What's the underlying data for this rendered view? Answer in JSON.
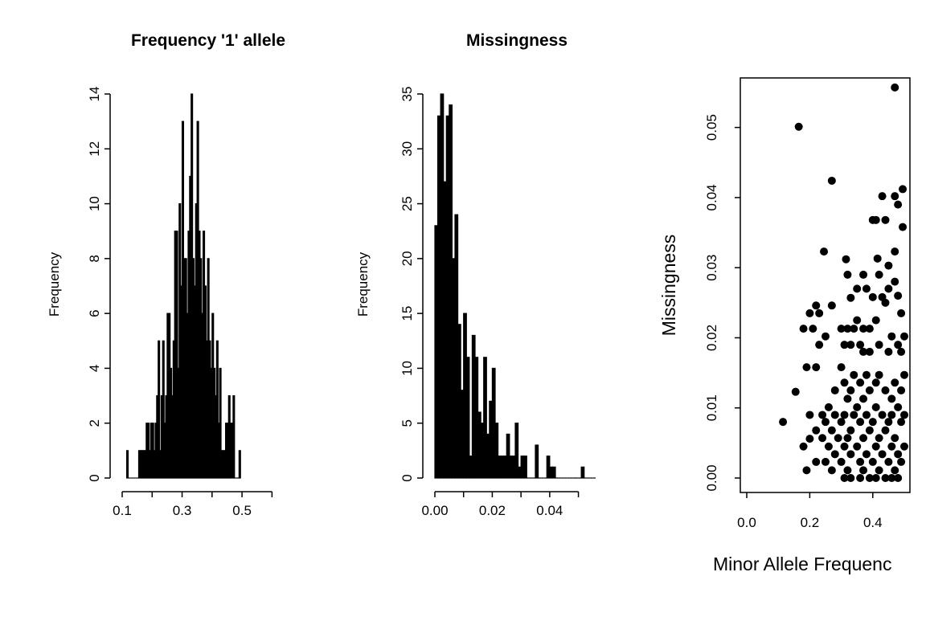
{
  "chart_data": [
    {
      "type": "bar",
      "title": "Frequency '1' allele",
      "xlabel": "",
      "ylabel": "Frequency",
      "xlim": [
        0.1,
        0.65
      ],
      "ylim": [
        0,
        14
      ],
      "xticks": [
        0.1,
        0.2,
        0.3,
        0.4,
        0.5,
        0.6
      ],
      "xtick_labels": [
        "0.1",
        "",
        "0.3",
        "",
        "0.5",
        ""
      ],
      "yticks": [
        0,
        2,
        4,
        6,
        8,
        10,
        12,
        14
      ],
      "ytick_labels": [
        "0",
        "2",
        "4",
        "6",
        "8",
        "10",
        "12",
        "14"
      ],
      "bin_width": 0.005,
      "bin_start": 0.115,
      "values": [
        1,
        0,
        0,
        0,
        0,
        0,
        0,
        0,
        1,
        1,
        1,
        1,
        1,
        2,
        2,
        1,
        2,
        2,
        1,
        2,
        3,
        5,
        1,
        3,
        5,
        2,
        3,
        6,
        6,
        4,
        3,
        5,
        9,
        9,
        4,
        10,
        7,
        13,
        8,
        8,
        6,
        9,
        11,
        14,
        8,
        7,
        10,
        13,
        9,
        8,
        6,
        9,
        7,
        5,
        8,
        5,
        4,
        6,
        4,
        3,
        5,
        2,
        4,
        1,
        1,
        1,
        2,
        2,
        3,
        2,
        2,
        3,
        0,
        0,
        0,
        1
      ]
    },
    {
      "type": "bar",
      "title": "Missingness",
      "xlabel": "",
      "ylabel": "Frequency",
      "xlim": [
        0,
        0.056
      ],
      "ylim": [
        0,
        35
      ],
      "xticks": [
        0.0,
        0.01,
        0.02,
        0.03,
        0.04,
        0.05
      ],
      "xtick_labels": [
        "0.00",
        "",
        "0.02",
        "",
        "0.04",
        ""
      ],
      "yticks": [
        0,
        5,
        10,
        15,
        20,
        25,
        30,
        35
      ],
      "ytick_labels": [
        "0",
        "5",
        "10",
        "15",
        "20",
        "25",
        "30",
        "35"
      ],
      "bin_width": 0.001,
      "bin_start": 0.0,
      "values": [
        23,
        33,
        35,
        27,
        33,
        34,
        20,
        24,
        14,
        8,
        15,
        11,
        2,
        13,
        11,
        6,
        5,
        11,
        4,
        7,
        10,
        5,
        2,
        2,
        2,
        4,
        2,
        2,
        5,
        1,
        2,
        2,
        0,
        0,
        0,
        3,
        0,
        0,
        0,
        2,
        1,
        1,
        0,
        0,
        0,
        0,
        0,
        0,
        0,
        0,
        0,
        1,
        0,
        0,
        0,
        0
      ]
    },
    {
      "type": "scatter",
      "title": "",
      "xlabel": "Minor Allele Frequenc",
      "ylabel": "Missingness",
      "xlim": [
        0.0,
        0.5
      ],
      "ylim": [
        0.0,
        0.055
      ],
      "xticks": [
        0.0,
        0.2,
        0.4
      ],
      "xtick_labels": [
        "0.0",
        "0.2",
        "0.4"
      ],
      "yticks": [
        0.0,
        0.01,
        0.02,
        0.03,
        0.04,
        0.05
      ],
      "ytick_labels": [
        "0.00",
        "0.01",
        "0.02",
        "0.03",
        "0.04",
        "0.05"
      ],
      "points": [
        [
          0.47,
          0.0557
        ],
        [
          0.165,
          0.0501
        ],
        [
          0.27,
          0.0424
        ],
        [
          0.495,
          0.0412
        ],
        [
          0.43,
          0.0402
        ],
        [
          0.47,
          0.0402
        ],
        [
          0.48,
          0.039
        ],
        [
          0.4,
          0.0368
        ],
        [
          0.41,
          0.0368
        ],
        [
          0.44,
          0.0368
        ],
        [
          0.495,
          0.0358
        ],
        [
          0.245,
          0.0323
        ],
        [
          0.47,
          0.0323
        ],
        [
          0.415,
          0.0313
        ],
        [
          0.315,
          0.0312
        ],
        [
          0.45,
          0.0303
        ],
        [
          0.32,
          0.029
        ],
        [
          0.37,
          0.029
        ],
        [
          0.42,
          0.029
        ],
        [
          0.47,
          0.028
        ],
        [
          0.35,
          0.027
        ],
        [
          0.38,
          0.027
        ],
        [
          0.45,
          0.027
        ],
        [
          0.48,
          0.026
        ],
        [
          0.4,
          0.0258
        ],
        [
          0.43,
          0.0258
        ],
        [
          0.33,
          0.0257
        ],
        [
          0.44,
          0.025
        ],
        [
          0.27,
          0.0246
        ],
        [
          0.22,
          0.0246
        ],
        [
          0.2,
          0.0235
        ],
        [
          0.23,
          0.0235
        ],
        [
          0.49,
          0.0235
        ],
        [
          0.35,
          0.0225
        ],
        [
          0.41,
          0.0225
        ],
        [
          0.18,
          0.0213
        ],
        [
          0.21,
          0.0213
        ],
        [
          0.3,
          0.0213
        ],
        [
          0.32,
          0.0213
        ],
        [
          0.34,
          0.0213
        ],
        [
          0.37,
          0.0213
        ],
        [
          0.39,
          0.0213
        ],
        [
          0.25,
          0.0202
        ],
        [
          0.46,
          0.0202
        ],
        [
          0.5,
          0.0202
        ],
        [
          0.23,
          0.019
        ],
        [
          0.31,
          0.019
        ],
        [
          0.33,
          0.019
        ],
        [
          0.36,
          0.019
        ],
        [
          0.42,
          0.019
        ],
        [
          0.48,
          0.019
        ],
        [
          0.37,
          0.018
        ],
        [
          0.39,
          0.018
        ],
        [
          0.45,
          0.018
        ],
        [
          0.49,
          0.018
        ],
        [
          0.19,
          0.0158
        ],
        [
          0.22,
          0.0158
        ],
        [
          0.3,
          0.0158
        ],
        [
          0.34,
          0.0147
        ],
        [
          0.38,
          0.0147
        ],
        [
          0.42,
          0.0147
        ],
        [
          0.5,
          0.0147
        ],
        [
          0.31,
          0.0136
        ],
        [
          0.36,
          0.0136
        ],
        [
          0.41,
          0.0136
        ],
        [
          0.47,
          0.0136
        ],
        [
          0.155,
          0.0123
        ],
        [
          0.28,
          0.0125
        ],
        [
          0.33,
          0.0125
        ],
        [
          0.39,
          0.0125
        ],
        [
          0.44,
          0.0125
        ],
        [
          0.49,
          0.0125
        ],
        [
          0.32,
          0.0113
        ],
        [
          0.37,
          0.0113
        ],
        [
          0.46,
          0.0113
        ],
        [
          0.26,
          0.0101
        ],
        [
          0.35,
          0.0101
        ],
        [
          0.41,
          0.0101
        ],
        [
          0.48,
          0.0101
        ],
        [
          0.2,
          0.009
        ],
        [
          0.24,
          0.009
        ],
        [
          0.28,
          0.009
        ],
        [
          0.31,
          0.009
        ],
        [
          0.34,
          0.009
        ],
        [
          0.38,
          0.009
        ],
        [
          0.43,
          0.009
        ],
        [
          0.46,
          0.009
        ],
        [
          0.5,
          0.009
        ],
        [
          0.115,
          0.008
        ],
        [
          0.25,
          0.008
        ],
        [
          0.3,
          0.008
        ],
        [
          0.36,
          0.008
        ],
        [
          0.4,
          0.008
        ],
        [
          0.45,
          0.008
        ],
        [
          0.49,
          0.008
        ],
        [
          0.22,
          0.0068
        ],
        [
          0.27,
          0.0068
        ],
        [
          0.33,
          0.0068
        ],
        [
          0.39,
          0.0068
        ],
        [
          0.44,
          0.0068
        ],
        [
          0.24,
          0.0057
        ],
        [
          0.29,
          0.0057
        ],
        [
          0.32,
          0.0057
        ],
        [
          0.37,
          0.0057
        ],
        [
          0.42,
          0.0057
        ],
        [
          0.47,
          0.0057
        ],
        [
          0.2,
          0.0056
        ],
        [
          0.18,
          0.0045
        ],
        [
          0.26,
          0.0045
        ],
        [
          0.31,
          0.0045
        ],
        [
          0.35,
          0.0045
        ],
        [
          0.41,
          0.0045
        ],
        [
          0.46,
          0.0045
        ],
        [
          0.5,
          0.0045
        ],
        [
          0.28,
          0.0034
        ],
        [
          0.33,
          0.0034
        ],
        [
          0.38,
          0.0034
        ],
        [
          0.43,
          0.0034
        ],
        [
          0.48,
          0.0034
        ],
        [
          0.22,
          0.0023
        ],
        [
          0.25,
          0.0023
        ],
        [
          0.3,
          0.0023
        ],
        [
          0.36,
          0.0023
        ],
        [
          0.4,
          0.0023
        ],
        [
          0.45,
          0.0023
        ],
        [
          0.49,
          0.0023
        ],
        [
          0.19,
          0.0011
        ],
        [
          0.27,
          0.0011
        ],
        [
          0.32,
          0.0011
        ],
        [
          0.37,
          0.0011
        ],
        [
          0.42,
          0.0011
        ],
        [
          0.47,
          0.0011
        ],
        [
          0.31,
          0.0
        ],
        [
          0.33,
          0.0
        ],
        [
          0.36,
          0.0
        ],
        [
          0.39,
          0.0
        ],
        [
          0.41,
          0.0
        ],
        [
          0.44,
          0.0
        ],
        [
          0.46,
          0.0
        ],
        [
          0.48,
          0.0
        ]
      ]
    }
  ]
}
